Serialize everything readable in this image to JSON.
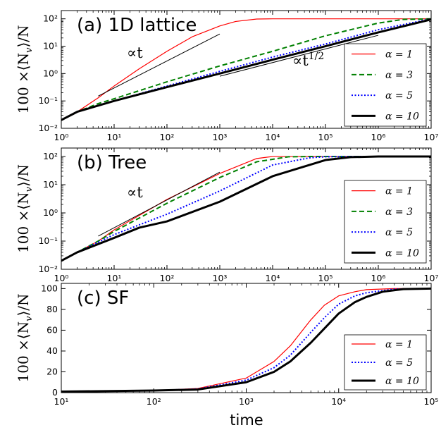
{
  "figure": {
    "xlabel": "time"
  },
  "chart_data": [
    {
      "type": "line",
      "title": "(a) 1D lattice",
      "ylabel": "100 ×⟨N_v⟩/N",
      "xscale": "log",
      "yscale": "log",
      "xlim": [
        1,
        10000000
      ],
      "ylim": [
        0.01,
        200
      ],
      "xticks": [
        1,
        10,
        100,
        1000,
        10000,
        100000,
        1000000,
        10000000
      ],
      "yticks": [
        0.01,
        0.1,
        1,
        10,
        100
      ],
      "legend_position": "right",
      "annotations": [
        {
          "text": "∝t",
          "line": [
            [
              5,
              0.15
            ],
            [
              1000,
              28
            ]
          ]
        },
        {
          "text": "∝t^1/2",
          "line": [
            [
              1000,
              0.8
            ],
            [
              1000000,
              25
            ]
          ]
        }
      ],
      "series": [
        {
          "name": "α = 1",
          "color": "#ff0000",
          "style": "solid",
          "width": 1.2,
          "x": [
            1,
            2,
            5,
            10,
            30,
            100,
            300,
            1000,
            2000,
            5000,
            10000,
            100000,
            1000000,
            10000000
          ],
          "y": [
            0.02,
            0.04,
            0.13,
            0.35,
            1.5,
            6.5,
            22,
            55,
            80,
            98,
            100,
            100,
            100,
            100
          ]
        },
        {
          "name": "α = 3",
          "color": "#008000",
          "style": "dashed",
          "width": 2,
          "x": [
            1,
            2,
            5,
            10,
            100,
            1000,
            10000,
            100000,
            1000000,
            3000000,
            10000000
          ],
          "y": [
            0.02,
            0.04,
            0.08,
            0.12,
            0.5,
            1.9,
            6.5,
            24,
            70,
            95,
            100
          ]
        },
        {
          "name": "α = 5",
          "color": "#0000ff",
          "style": "dotted",
          "width": 2,
          "x": [
            1,
            2,
            10,
            100,
            1000,
            10000,
            100000,
            1000000,
            10000000
          ],
          "y": [
            0.02,
            0.04,
            0.1,
            0.35,
            1.2,
            4,
            12,
            40,
            100
          ]
        },
        {
          "name": "α = 10",
          "color": "#000000",
          "style": "solid",
          "width": 3,
          "x": [
            1,
            2,
            10,
            100,
            1000,
            10000,
            100000,
            1000000,
            10000000
          ],
          "y": [
            0.02,
            0.04,
            0.1,
            0.32,
            1.0,
            3.2,
            10,
            32,
            95
          ]
        }
      ]
    },
    {
      "type": "line",
      "title": "(b) Tree",
      "ylabel": "100 ×⟨N_v⟩/N",
      "xscale": "log",
      "yscale": "log",
      "xlim": [
        1,
        10000000
      ],
      "ylim": [
        0.01,
        200
      ],
      "xticks": [
        1,
        10,
        100,
        1000,
        10000,
        100000,
        1000000,
        10000000
      ],
      "yticks": [
        0.01,
        0.1,
        1,
        10,
        100
      ],
      "legend_position": "right",
      "annotations": [
        {
          "text": "∝t",
          "line": [
            [
              5,
              0.15
            ],
            [
              1000,
              28
            ]
          ]
        }
      ],
      "series": [
        {
          "name": "α = 1",
          "color": "#ff0000",
          "style": "solid",
          "width": 1.2,
          "x": [
            1,
            2,
            5,
            10,
            100,
            1000,
            5000,
            10000,
            30000,
            100000,
            10000000
          ],
          "y": [
            0.02,
            0.04,
            0.1,
            0.25,
            3,
            25,
            85,
            100,
            100,
            100,
            100
          ]
        },
        {
          "name": "α = 3",
          "color": "#008000",
          "style": "dashed",
          "width": 2,
          "x": [
            1,
            2,
            5,
            10,
            100,
            1000,
            5000,
            20000,
            50000,
            100000,
            10000000
          ],
          "y": [
            0.02,
            0.04,
            0.1,
            0.22,
            2.2,
            18,
            65,
            98,
            100,
            100,
            100
          ]
        },
        {
          "name": "α = 5",
          "color": "#0000ff",
          "style": "dotted",
          "width": 2,
          "x": [
            1,
            2,
            10,
            100,
            1000,
            10000,
            50000,
            100000,
            300000,
            10000000
          ],
          "y": [
            0.02,
            0.04,
            0.17,
            0.9,
            6,
            50,
            90,
            98,
            100,
            100
          ]
        },
        {
          "name": "α = 10",
          "color": "#000000",
          "style": "solid",
          "width": 3,
          "x": [
            1,
            2,
            10,
            30,
            100,
            1000,
            10000,
            100000,
            300000,
            1000000,
            10000000
          ],
          "y": [
            0.02,
            0.04,
            0.13,
            0.3,
            0.5,
            2.5,
            20,
            75,
            95,
            100,
            100
          ]
        }
      ]
    },
    {
      "type": "line",
      "title": "(c) SF",
      "ylabel": "100 ×⟨N_v⟩/N",
      "xscale": "log",
      "yscale": "linear",
      "xlim": [
        10,
        100000
      ],
      "ylim": [
        0,
        105
      ],
      "xticks": [
        10,
        100,
        1000,
        10000,
        100000
      ],
      "yticks": [
        0,
        20,
        40,
        60,
        80,
        100
      ],
      "legend_position": "right",
      "series": [
        {
          "name": "α = 1",
          "color": "#ff0000",
          "style": "solid",
          "width": 1.2,
          "x": [
            10,
            100,
            300,
            1000,
            2000,
            3000,
            5000,
            7000,
            10000,
            15000,
            20000,
            40000,
            100000
          ],
          "y": [
            1,
            2,
            4,
            14,
            30,
            45,
            70,
            84,
            93,
            97,
            99,
            100,
            100
          ]
        },
        {
          "name": "α = 5",
          "color": "#0000ff",
          "style": "dotted",
          "width": 2,
          "x": [
            10,
            100,
            300,
            1000,
            2000,
            3000,
            5000,
            7000,
            10000,
            15000,
            20000,
            40000,
            100000
          ],
          "y": [
            1,
            2,
            3.5,
            12,
            24,
            36,
            58,
            72,
            85,
            93,
            96,
            99.5,
            100
          ]
        },
        {
          "name": "α = 10",
          "color": "#000000",
          "style": "solid",
          "width": 3,
          "x": [
            10,
            100,
            300,
            1000,
            2000,
            3000,
            5000,
            10000,
            15000,
            20000,
            30000,
            50000,
            100000
          ],
          "y": [
            1,
            2,
            3,
            10,
            20,
            30,
            48,
            76,
            87,
            92,
            97,
            99.5,
            100
          ]
        }
      ]
    }
  ]
}
